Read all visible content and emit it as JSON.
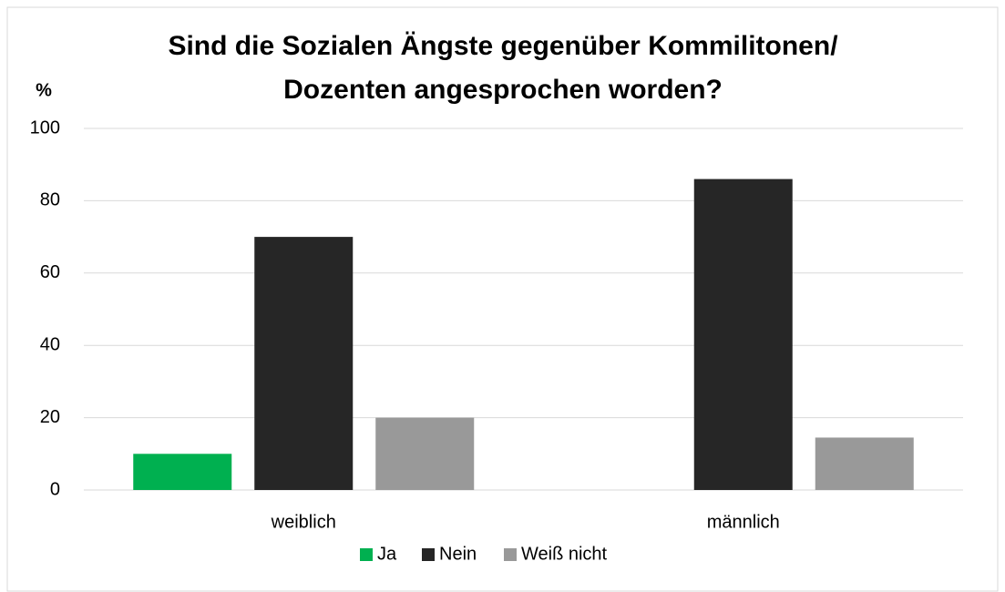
{
  "chart_data": {
    "type": "bar",
    "title": [
      "Sind die Sozialen Ängste gegenüber Kommilitonen/",
      "Dozenten  angesprochen worden?"
    ],
    "y_label": "%",
    "categories": [
      "weiblich",
      "männlich"
    ],
    "series": [
      {
        "name": "Ja",
        "color": "#00b050",
        "values": [
          10,
          0
        ]
      },
      {
        "name": "Nein",
        "color": "#262626",
        "values": [
          70,
          86
        ]
      },
      {
        "name": "Weiß nicht",
        "color": "#999999",
        "values": [
          20,
          14.5
        ]
      }
    ],
    "ylim": [
      0,
      100
    ],
    "yticks": [
      0,
      20,
      40,
      60,
      80,
      100
    ],
    "grid": true,
    "legend": "bottom"
  }
}
